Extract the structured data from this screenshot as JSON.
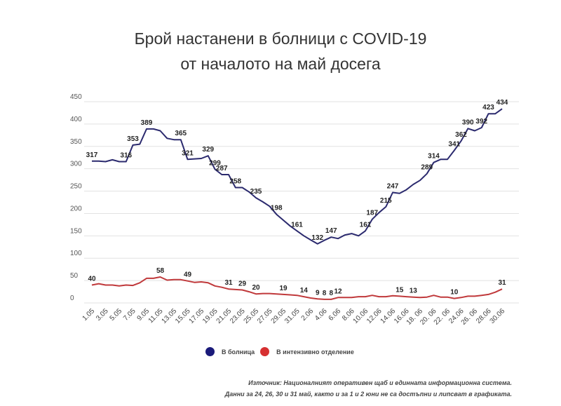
{
  "chart_data": {
    "type": "line",
    "title": "Брой настанени в болници с COVID-19",
    "subtitle": "от началото на май досега",
    "ylim": [
      0,
      450
    ],
    "yticks": [
      0,
      50,
      100,
      150,
      200,
      250,
      300,
      350,
      400,
      450
    ],
    "grid": true,
    "legend_position": "bottom",
    "x_tick_labels": [
      "1.05",
      "3.05",
      "5.05",
      "7.05",
      "9.05",
      "11.05",
      "13.05",
      "15.05",
      "17.05",
      "19.05",
      "21.05",
      "23.05",
      "25.05",
      "27.05",
      "29.05",
      "31.05",
      "2.06",
      "4.06",
      "6.06",
      "8.06",
      "10.06",
      "12.06",
      "14.06",
      "16.06",
      "18. 06",
      "20. 06",
      "22. 06",
      "24.06",
      "26. 06",
      "28.06",
      "30.06"
    ],
    "series": [
      {
        "name": "В болница",
        "color": "#2b2a6e",
        "values": [
          317,
          317,
          316,
          320,
          316,
          316,
          353,
          355,
          389,
          389,
          385,
          368,
          365,
          365,
          321,
          322,
          323,
          329,
          299,
          287,
          287,
          258,
          258,
          248,
          235,
          226,
          216,
          198,
          185,
          172,
          161,
          150,
          141,
          132,
          140,
          147,
          144,
          152,
          155,
          150,
          161,
          187,
          202,
          215,
          247,
          245,
          253,
          265,
          274,
          289,
          314,
          321,
          321,
          341,
          362,
          390,
          385,
          392,
          423,
          423,
          434
        ],
        "labeled_indices": [
          0,
          5,
          6,
          8,
          13,
          14,
          17,
          18,
          19,
          21,
          24,
          27,
          30,
          33,
          35,
          40,
          41,
          43,
          44,
          49,
          50,
          53,
          54,
          55,
          57,
          58,
          60
        ]
      },
      {
        "name": "В интензивно отделение",
        "color": "#c0393b",
        "values": [
          40,
          43,
          40,
          40,
          38,
          40,
          39,
          45,
          55,
          55,
          58,
          51,
          52,
          52,
          49,
          46,
          47,
          45,
          38,
          35,
          31,
          30,
          29,
          25,
          20,
          21,
          21,
          20,
          19,
          18,
          17,
          14,
          11,
          9,
          8,
          8,
          12,
          12,
          12,
          14,
          14,
          17,
          14,
          14,
          16,
          15,
          14,
          13,
          12,
          13,
          17,
          13,
          13,
          10,
          12,
          15,
          15,
          17,
          19,
          24,
          31
        ],
        "labeled_indices": [
          0,
          10,
          14,
          20,
          22,
          24,
          28,
          31,
          33,
          34,
          35,
          36,
          45,
          47,
          53,
          60
        ]
      }
    ],
    "legend": [
      {
        "label": "В болница",
        "color": "#1a1a7a"
      },
      {
        "label": "В интензивно отделение",
        "color": "#d63031"
      }
    ],
    "notes": [
      "Източник: Националният оперативен щаб и единната информационна система.",
      "Данни за 24, 26, 30 и 31 май, както и за 1 и 2 юни не са достъпни и липсват в графиката."
    ]
  }
}
